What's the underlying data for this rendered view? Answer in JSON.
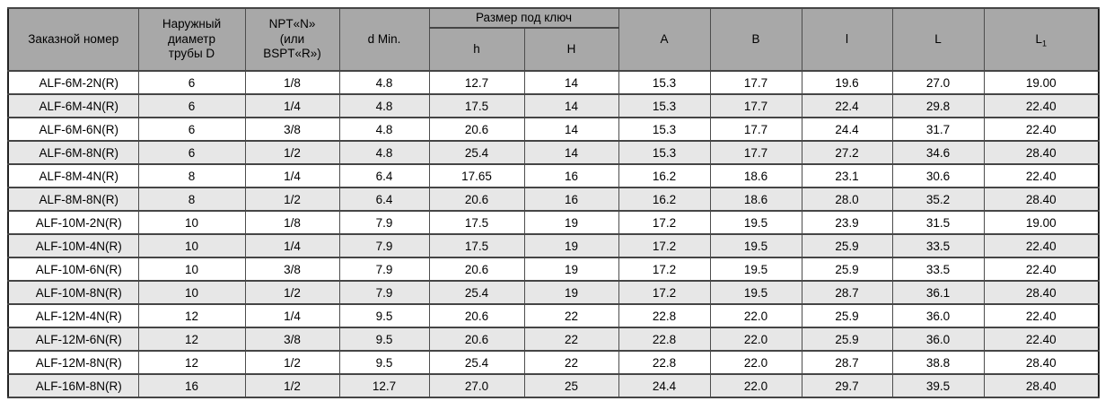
{
  "colors": {
    "header_bg": "#a8a8a8",
    "row_bg": "#ffffff",
    "row_alt_bg": "#e7e7e7",
    "border": "#4d4d4d",
    "outer_border": "#222222",
    "text": "#000000"
  },
  "table": {
    "header": {
      "order": "Заказной номер",
      "outer_diameter": "Наружный\nдиаметр\nтрубы D",
      "thread": "NPT«N»\n(или\nBSPT«R»)",
      "d_min": "d Min.",
      "wrench_size_group": "Размер под ключ",
      "h_small": "h",
      "h_big": "H",
      "col_a": "A",
      "col_b": "B",
      "col_l_small": "l",
      "col_l_big": "L",
      "col_l1_base": "L",
      "col_l1_sub": "1"
    },
    "rows": [
      [
        "ALF-6M-2N(R)",
        "6",
        "1/8",
        "4.8",
        "12.7",
        "14",
        "15.3",
        "17.7",
        "19.6",
        "27.0",
        "19.00"
      ],
      [
        "ALF-6M-4N(R)",
        "6",
        "1/4",
        "4.8",
        "17.5",
        "14",
        "15.3",
        "17.7",
        "22.4",
        "29.8",
        "22.40"
      ],
      [
        "ALF-6M-6N(R)",
        "6",
        "3/8",
        "4.8",
        "20.6",
        "14",
        "15.3",
        "17.7",
        "24.4",
        "31.7",
        "22.40"
      ],
      [
        "ALF-6M-8N(R)",
        "6",
        "1/2",
        "4.8",
        "25.4",
        "14",
        "15.3",
        "17.7",
        "27.2",
        "34.6",
        "28.40"
      ],
      [
        "ALF-8M-4N(R)",
        "8",
        "1/4",
        "6.4",
        "17.65",
        "16",
        "16.2",
        "18.6",
        "23.1",
        "30.6",
        "22.40"
      ],
      [
        "ALF-8M-8N(R)",
        "8",
        "1/2",
        "6.4",
        "20.6",
        "16",
        "16.2",
        "18.6",
        "28.0",
        "35.2",
        "28.40"
      ],
      [
        "ALF-10M-2N(R)",
        "10",
        "1/8",
        "7.9",
        "17.5",
        "19",
        "17.2",
        "19.5",
        "23.9",
        "31.5",
        "19.00"
      ],
      [
        "ALF-10M-4N(R)",
        "10",
        "1/4",
        "7.9",
        "17.5",
        "19",
        "17.2",
        "19.5",
        "25.9",
        "33.5",
        "22.40"
      ],
      [
        "ALF-10M-6N(R)",
        "10",
        "3/8",
        "7.9",
        "20.6",
        "19",
        "17.2",
        "19.5",
        "25.9",
        "33.5",
        "22.40"
      ],
      [
        "ALF-10M-8N(R)",
        "10",
        "1/2",
        "7.9",
        "25.4",
        "19",
        "17.2",
        "19.5",
        "28.7",
        "36.1",
        "28.40"
      ],
      [
        "ALF-12M-4N(R)",
        "12",
        "1/4",
        "9.5",
        "20.6",
        "22",
        "22.8",
        "22.0",
        "25.9",
        "36.0",
        "22.40"
      ],
      [
        "ALF-12M-6N(R)",
        "12",
        "3/8",
        "9.5",
        "20.6",
        "22",
        "22.8",
        "22.0",
        "25.9",
        "36.0",
        "22.40"
      ],
      [
        "ALF-12M-8N(R)",
        "12",
        "1/2",
        "9.5",
        "25.4",
        "22",
        "22.8",
        "22.0",
        "28.7",
        "38.8",
        "28.40"
      ],
      [
        "ALF-16M-8N(R)",
        "16",
        "1/2",
        "12.7",
        "27.0",
        "25",
        "24.4",
        "22.0",
        "29.7",
        "39.5",
        "28.40"
      ]
    ]
  }
}
